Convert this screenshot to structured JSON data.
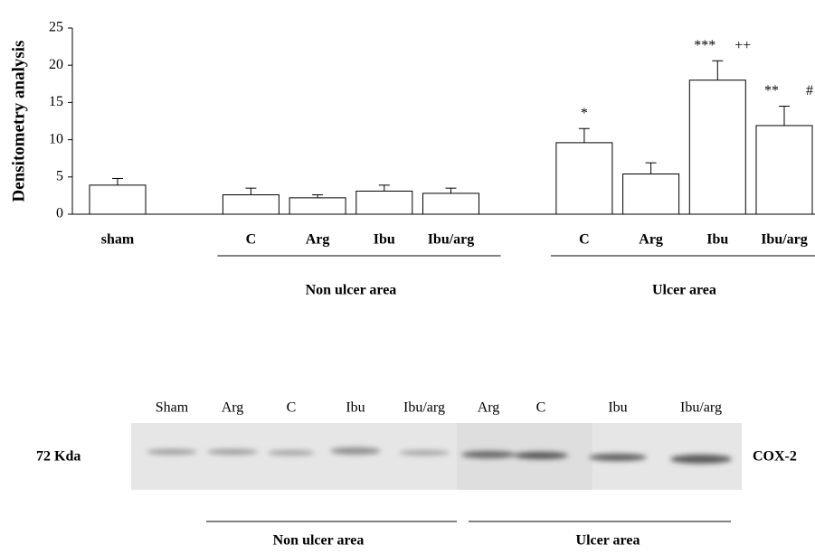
{
  "chart_data": {
    "type": "bar",
    "ylabel": "Densitometry analysis",
    "categories": [
      "sham",
      null,
      "C",
      "Arg",
      "Ibu",
      "Ibu/arg",
      null,
      "C",
      "Arg",
      "Ibu",
      "Ibu/arg"
    ],
    "values": [
      3.9,
      null,
      2.6,
      2.2,
      3.1,
      2.8,
      null,
      9.6,
      5.4,
      18.0,
      11.9
    ],
    "errors": [
      0.9,
      null,
      0.9,
      0.4,
      0.8,
      0.7,
      null,
      1.9,
      1.5,
      2.6,
      2.6
    ],
    "annotations": [
      null,
      null,
      null,
      null,
      null,
      null,
      null,
      [
        "*"
      ],
      null,
      [
        "***",
        "++"
      ],
      [
        "**",
        "#"
      ]
    ],
    "groups": [
      "Non ulcer area",
      "Ulcer area"
    ],
    "color": "#ffffff",
    "ylim": [
      0,
      25
    ],
    "yticks": [
      0,
      5,
      10,
      15,
      20,
      25
    ],
    "grid": false
  },
  "blot": {
    "lanes": [
      "Sham",
      "Arg",
      "C",
      "Ibu",
      "Ibu/arg",
      "Arg",
      "C",
      "Ibu",
      "Ibu/arg"
    ],
    "marker": "72 Kda",
    "protein": "COX-2",
    "groups": [
      "Non ulcer area",
      "Ulcer area"
    ]
  }
}
